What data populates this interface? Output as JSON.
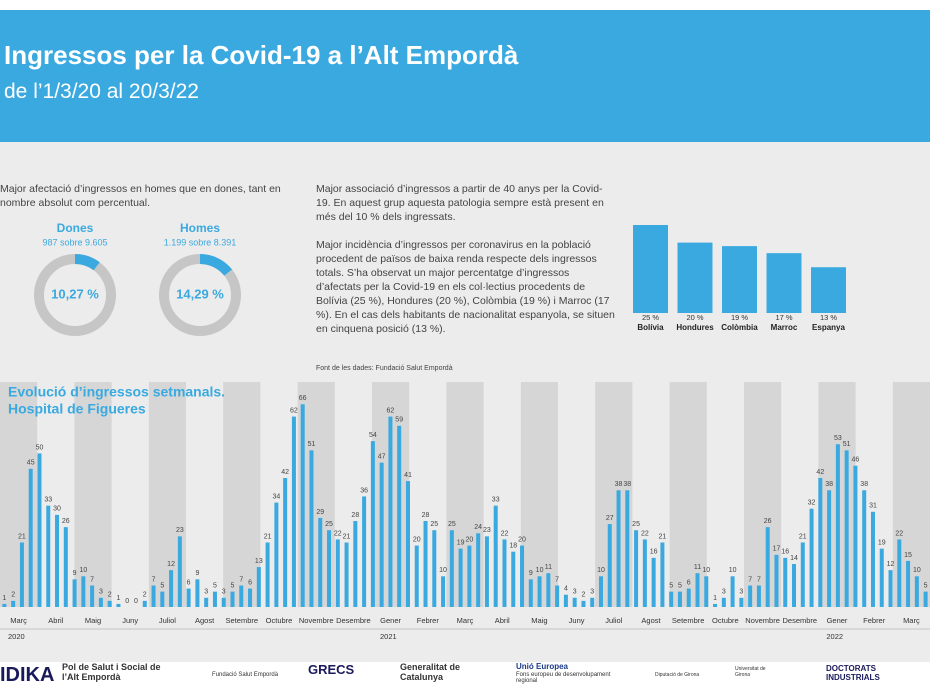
{
  "header": {
    "title": "Ingressos per la Covid-19 a l’Alt Empordà",
    "subtitle": "de l’1/3/20 al 20/3/22"
  },
  "texts": [
    "Major afectació d’ingressos en homes que en dones, tant en nombre absolut com percentual.",
    "Major associació d’ingressos a partir de 40 anys per la Covid-19. En aquest grup aquesta patologia sempre està present en més del 10 % dels ingressats.",
    "Major incidència d’ingressos per coronavirus en la població procedent de països de baixa renda respecte dels ingressos totals. S’ha observat un major percentatge d’ingressos d’afectats per la Covid-19 en els col·lectius procedents de Bolívia (25 %), Hondures (20 %), Colòmbia (19 %) i Marroc (17 %). En el cas dels habitants de nacionalitat espanyola, se situen en cinquena posició (13 %).",
    "Font de les dades: Fundació Salut Empordà"
  ],
  "chart_data": [
    {
      "type": "donut",
      "title": "Dones",
      "subtitle": "987 sobre 9.605",
      "values": [
        10.27
      ],
      "value_labels": [
        "10,27 %"
      ],
      "color": "#3aa9e0"
    },
    {
      "type": "donut",
      "title": "Homes",
      "subtitle": "1.199 sobre 8.391",
      "values": [
        14.29
      ],
      "value_labels": [
        "14,29 %"
      ],
      "color": "#3aa9e0"
    },
    {
      "type": "hbars",
      "categories": [
        "Bolívia",
        "Hondures",
        "Colòmbia",
        "Marroc",
        "Espanya"
      ],
      "values": [
        25,
        20,
        19,
        17,
        13
      ],
      "value_labels": [
        "25 %",
        "20 %",
        "19 %",
        "17 %",
        "13 %"
      ],
      "color": "#3aa9e0",
      "ylim": [
        0,
        25
      ]
    },
    {
      "type": "bar",
      "title": [
        "Evolució d’ingressos setmanals.",
        "Hospital de Figueres"
      ],
      "color": "#3aa9e0",
      "ylim": [
        0,
        70
      ],
      "values": [
        1,
        2,
        21,
        45,
        50,
        33,
        30,
        26,
        9,
        10,
        7,
        3,
        2,
        1,
        0,
        0,
        2,
        7,
        5,
        12,
        23,
        6,
        9,
        3,
        5,
        3,
        5,
        7,
        6,
        13,
        21,
        34,
        42,
        62,
        66,
        51,
        29,
        25,
        22,
        21,
        28,
        36,
        54,
        47,
        62,
        59,
        41,
        20,
        28,
        25,
        10,
        25,
        19,
        20,
        24,
        23,
        33,
        22,
        18,
        20,
        9,
        10,
        11,
        7,
        4,
        3,
        2,
        3,
        10,
        27,
        38,
        38,
        25,
        22,
        16,
        21,
        5,
        5,
        6,
        11,
        10,
        1,
        3,
        10,
        3,
        7,
        7,
        26,
        17,
        16,
        14,
        21,
        32,
        42,
        38,
        53,
        51,
        46,
        38,
        31,
        19,
        12,
        22,
        15,
        10,
        5
      ],
      "months": [
        "Març",
        "Abril",
        "Maig",
        "Juny",
        "Juliol",
        "Agost",
        "Setembre",
        "Octubre",
        "Novembre",
        "Desembre",
        "Gener",
        "Febrer",
        "Març",
        "Abril",
        "Maig",
        "Juny",
        "Juliol",
        "Agost",
        "Setembre",
        "Octubre",
        "Novembre",
        "Desembre",
        "Gener",
        "Febrer",
        "Març"
      ],
      "years": [
        "2020",
        "2021",
        "2022"
      ]
    }
  ],
  "footer": [
    "IDIKA",
    "Pol de Salut i Social de l’Alt Empordà",
    "Fundació Salut Empordà",
    "GRECS",
    "Generalitat de Catalunya",
    "Unió Europea",
    "Fons europeu de desenvolupament regional",
    "Diputació de Girona",
    "Universitat de Girona",
    "DOCTORATS INDUSTRIALS"
  ]
}
